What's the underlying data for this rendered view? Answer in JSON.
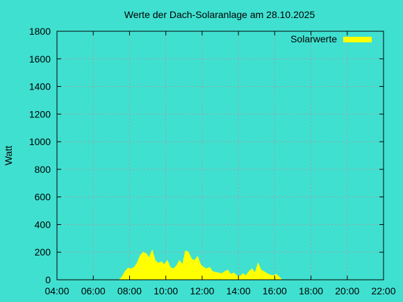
{
  "chart_data": {
    "type": "area",
    "title": "Werte der Dach-Solaranlage am 28.10.2025",
    "xlabel": "",
    "ylabel": "Watt",
    "xlim": [
      "04:00",
      "22:00"
    ],
    "ylim": [
      0,
      1800
    ],
    "xticks": [
      "04:00",
      "06:00",
      "08:00",
      "10:00",
      "12:00",
      "14:00",
      "16:00",
      "18:00",
      "20:00",
      "22:00"
    ],
    "yticks": [
      "0",
      "200",
      "400",
      "600",
      "800",
      "1000",
      "1200",
      "1400",
      "1600",
      "1800"
    ],
    "grid": true,
    "legend": "top-right",
    "colors": {
      "background": "#40e0d0",
      "series": "#ffff00",
      "grid": "#a0a0a0",
      "axis": "#000000"
    },
    "series": [
      {
        "name": "Solarwerte",
        "x": [
          "07:25",
          "07:35",
          "07:45",
          "07:55",
          "08:05",
          "08:15",
          "08:25",
          "08:35",
          "08:45",
          "08:55",
          "09:05",
          "09:15",
          "09:25",
          "09:35",
          "09:45",
          "09:55",
          "10:05",
          "10:15",
          "10:25",
          "10:35",
          "10:45",
          "10:55",
          "11:05",
          "11:15",
          "11:25",
          "11:35",
          "11:45",
          "11:55",
          "12:05",
          "12:15",
          "12:25",
          "12:35",
          "12:45",
          "12:55",
          "13:05",
          "13:15",
          "13:25",
          "13:35",
          "13:45",
          "13:55",
          "14:05",
          "14:15",
          "14:25",
          "14:35",
          "14:45",
          "14:55",
          "15:05",
          "15:15",
          "15:25",
          "15:35",
          "15:45",
          "15:55",
          "16:05",
          "16:15",
          "16:25"
        ],
        "values": [
          0,
          20,
          60,
          85,
          80,
          90,
          120,
          175,
          200,
          190,
          160,
          215,
          140,
          120,
          130,
          110,
          140,
          90,
          80,
          100,
          140,
          110,
          210,
          200,
          150,
          140,
          170,
          110,
          90,
          80,
          90,
          60,
          55,
          50,
          45,
          60,
          70,
          40,
          50,
          30,
          25,
          45,
          30,
          60,
          80,
          50,
          120,
          70,
          60,
          45,
          35,
          30,
          40,
          20,
          0
        ]
      }
    ]
  }
}
